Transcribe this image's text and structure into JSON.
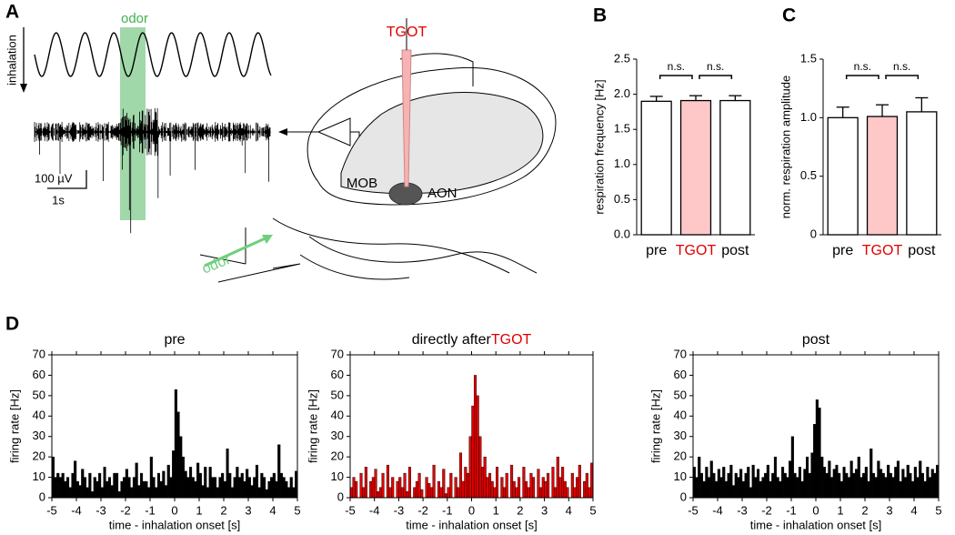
{
  "panel_labels": [
    "A",
    "B",
    "C",
    "D"
  ],
  "panel_a": {
    "odor_window_label": "odor",
    "respiration_label": "inhalation",
    "scale_voltage": "100 µV",
    "scale_time": "1s",
    "drug_label": "TGOT",
    "region_1": "MOB",
    "region_2": "AON",
    "odor_inlet_label": "odor"
  },
  "chart_data": [
    {
      "type": "bar",
      "ylabel": "respiration frequency [Hz]",
      "categories": [
        "pre",
        "TGOT",
        "post"
      ],
      "label_colors": [
        "#000000",
        "#e00000",
        "#000000"
      ],
      "colors": [
        "#ffffff",
        "#ffc8c8",
        "#ffffff"
      ],
      "values": [
        1.9,
        1.91,
        1.91
      ],
      "errors": [
        0.07,
        0.07,
        0.07
      ],
      "ylim": [
        0,
        2.5
      ],
      "yticks": [
        {
          "value": 0,
          "label": "0.0"
        },
        {
          "value": 0.5,
          "label": "0.5"
        },
        {
          "value": 1,
          "label": "1.0"
        },
        {
          "value": 1.5,
          "label": "1.5"
        },
        {
          "value": 2,
          "label": "2.0"
        },
        {
          "value": 2.5,
          "label": "2.5"
        }
      ],
      "annotations": [
        "n.s.",
        "n.s."
      ]
    },
    {
      "type": "bar",
      "ylabel": "norm. respiration amplitude",
      "categories": [
        "pre",
        "TGOT",
        "post"
      ],
      "label_colors": [
        "#000000",
        "#e00000",
        "#000000"
      ],
      "colors": [
        "#ffffff",
        "#ffc8c8",
        "#ffffff"
      ],
      "values": [
        1.0,
        1.01,
        1.05
      ],
      "errors": [
        0.09,
        0.1,
        0.12
      ],
      "ylim": [
        0,
        1.5
      ],
      "yticks": [
        0,
        0.5,
        {
          "value": 1,
          "label": "1.0"
        },
        1.5
      ],
      "annotations": [
        "n.s.",
        "n.s."
      ]
    },
    {
      "type": "histogram",
      "title": "pre",
      "xlabel": "time - inhalation onset [s]",
      "ylabel": "firing rate [Hz]",
      "color": "#000000",
      "edge_color": "#000000",
      "bins": [
        -5,
        -4.9,
        -4.8,
        -4.7,
        -4.6,
        -4.5,
        -4.4,
        -4.3,
        -4.2,
        -4.1,
        -4,
        -3.9,
        -3.8,
        -3.7,
        -3.6,
        -3.5,
        -3.4,
        -3.3,
        -3.2,
        -3.1,
        -3,
        -2.9,
        -2.8,
        -2.7,
        -2.6,
        -2.5,
        -2.4,
        -2.3,
        -2.2,
        -2.1,
        -2,
        -1.9,
        -1.8,
        -1.7,
        -1.6,
        -1.5,
        -1.4,
        -1.3,
        -1.2,
        -1.1,
        -1,
        -0.9,
        -0.8,
        -0.7,
        -0.6,
        -0.5,
        -0.4,
        -0.3,
        -0.2,
        -0.1,
        0,
        0.1,
        0.2,
        0.3,
        0.4,
        0.5,
        0.6,
        0.7,
        0.8,
        0.9,
        1,
        1.1,
        1.2,
        1.3,
        1.4,
        1.5,
        1.6,
        1.7,
        1.8,
        1.9,
        2,
        2.1,
        2.2,
        2.3,
        2.4,
        2.5,
        2.6,
        2.7,
        2.8,
        2.9,
        3,
        3.1,
        3.2,
        3.3,
        3.4,
        3.5,
        3.6,
        3.7,
        3.8,
        3.9,
        4,
        4.1,
        4.2,
        4.3,
        4.4,
        4.5,
        4.6,
        4.7,
        4.8,
        4.9,
        5
      ],
      "values": [
        20,
        10,
        12,
        10,
        12,
        8,
        10,
        5,
        12,
        18,
        8,
        6,
        14,
        10,
        5,
        12,
        3,
        10,
        8,
        12,
        5,
        15,
        8,
        10,
        6,
        12,
        12,
        3,
        8,
        10,
        14,
        10,
        5,
        10,
        17,
        6,
        12,
        8,
        8,
        5,
        20,
        10,
        5,
        12,
        8,
        13,
        6,
        16,
        10,
        23,
        53,
        42,
        30,
        20,
        13,
        10,
        15,
        10,
        8,
        17,
        12,
        6,
        15,
        5,
        15,
        10,
        10,
        5,
        10,
        12,
        8,
        24,
        12,
        5,
        10,
        15,
        10,
        12,
        8,
        14,
        10,
        6,
        10,
        16,
        5,
        12,
        10,
        4,
        8,
        10,
        12,
        8,
        26,
        12,
        10,
        8,
        5,
        10,
        5,
        13
      ],
      "xlim": [
        -5,
        5
      ],
      "xticks": [
        -5,
        -4,
        -3,
        -2,
        -1,
        0,
        1,
        2,
        3,
        4,
        5
      ],
      "ylim": [
        0,
        70
      ],
      "yticks": [
        0,
        10,
        20,
        30,
        40,
        50,
        60,
        70
      ]
    },
    {
      "type": "histogram",
      "title": "directly after",
      "title_suffix": "TGOT",
      "title_suffix_color": "#e00000",
      "xlabel": "time - inhalation onset [s]",
      "ylabel": "firing rate [Hz]",
      "color": "#e00000",
      "edge_color": "#000000",
      "bins": [
        -5,
        -4.9,
        -4.8,
        -4.7,
        -4.6,
        -4.5,
        -4.4,
        -4.3,
        -4.2,
        -4.1,
        -4,
        -3.9,
        -3.8,
        -3.7,
        -3.6,
        -3.5,
        -3.4,
        -3.3,
        -3.2,
        -3.1,
        -3,
        -2.9,
        -2.8,
        -2.7,
        -2.6,
        -2.5,
        -2.4,
        -2.3,
        -2.2,
        -2.1,
        -2,
        -1.9,
        -1.8,
        -1.7,
        -1.6,
        -1.5,
        -1.4,
        -1.3,
        -1.2,
        -1.1,
        -1,
        -0.9,
        -0.8,
        -0.7,
        -0.6,
        -0.5,
        -0.4,
        -0.3,
        -0.2,
        -0.1,
        0,
        0.1,
        0.2,
        0.3,
        0.4,
        0.5,
        0.6,
        0.7,
        0.8,
        0.9,
        1,
        1.1,
        1.2,
        1.3,
        1.4,
        1.5,
        1.6,
        1.7,
        1.8,
        1.9,
        2,
        2.1,
        2.2,
        2.3,
        2.4,
        2.5,
        2.6,
        2.7,
        2.8,
        2.9,
        3,
        3.1,
        3.2,
        3.3,
        3.4,
        3.5,
        3.6,
        3.7,
        3.8,
        3.9,
        4,
        4.1,
        4.2,
        4.3,
        4.4,
        4.5,
        4.6,
        4.7,
        4.8,
        4.9,
        5
      ],
      "values": [
        5,
        10,
        8,
        0,
        12,
        5,
        15,
        0,
        8,
        10,
        14,
        3,
        5,
        12,
        0,
        16,
        5,
        10,
        0,
        8,
        10,
        5,
        12,
        3,
        15,
        0,
        5,
        8,
        12,
        4,
        0,
        10,
        7,
        5,
        16,
        0,
        8,
        5,
        14,
        2,
        5,
        12,
        0,
        10,
        5,
        22,
        8,
        15,
        12,
        30,
        45,
        60,
        50,
        30,
        15,
        20,
        10,
        12,
        8,
        5,
        15,
        0,
        10,
        5,
        12,
        0,
        16,
        8,
        5,
        10,
        0,
        15,
        8,
        5,
        12,
        10,
        0,
        14,
        5,
        10,
        8,
        12,
        0,
        15,
        5,
        20,
        10,
        15,
        8,
        5,
        0,
        12,
        5,
        10,
        16,
        0,
        8,
        12,
        5,
        17
      ],
      "xlim": [
        -5,
        5
      ],
      "xticks": [
        -5,
        -4,
        -3,
        -2,
        -1,
        0,
        1,
        2,
        3,
        4,
        5
      ],
      "ylim": [
        0,
        70
      ],
      "yticks": [
        0,
        10,
        20,
        30,
        40,
        50,
        60,
        70
      ]
    },
    {
      "type": "histogram",
      "title": "post",
      "xlabel": "time - inhalation onset [s]",
      "ylabel": "firing rate [Hz]",
      "color": "#000000",
      "edge_color": "#000000",
      "bins": [
        -5,
        -4.9,
        -4.8,
        -4.7,
        -4.6,
        -4.5,
        -4.4,
        -4.3,
        -4.2,
        -4.1,
        -4,
        -3.9,
        -3.8,
        -3.7,
        -3.6,
        -3.5,
        -3.4,
        -3.3,
        -3.2,
        -3.1,
        -3,
        -2.9,
        -2.8,
        -2.7,
        -2.6,
        -2.5,
        -2.4,
        -2.3,
        -2.2,
        -2.1,
        -2,
        -1.9,
        -1.8,
        -1.7,
        -1.6,
        -1.5,
        -1.4,
        -1.3,
        -1.2,
        -1.1,
        -1,
        -0.9,
        -0.8,
        -0.7,
        -0.6,
        -0.5,
        -0.4,
        -0.3,
        -0.2,
        -0.1,
        0,
        0.1,
        0.2,
        0.3,
        0.4,
        0.5,
        0.6,
        0.7,
        0.8,
        0.9,
        1,
        1.1,
        1.2,
        1.3,
        1.4,
        1.5,
        1.6,
        1.7,
        1.8,
        1.9,
        2,
        2.1,
        2.2,
        2.3,
        2.4,
        2.5,
        2.6,
        2.7,
        2.8,
        2.9,
        3,
        3.1,
        3.2,
        3.3,
        3.4,
        3.5,
        3.6,
        3.7,
        3.8,
        3.9,
        4,
        4.1,
        4.2,
        4.3,
        4.4,
        4.5,
        4.6,
        4.7,
        4.8,
        4.9,
        5
      ],
      "values": [
        15,
        10,
        20,
        12,
        8,
        15,
        10,
        18,
        12,
        8,
        14,
        10,
        15,
        8,
        12,
        16,
        6,
        12,
        10,
        14,
        8,
        12,
        15,
        5,
        16,
        10,
        14,
        8,
        10,
        12,
        16,
        8,
        12,
        20,
        10,
        8,
        15,
        12,
        10,
        18,
        30,
        12,
        10,
        15,
        8,
        14,
        20,
        12,
        22,
        36,
        48,
        44,
        20,
        15,
        12,
        18,
        10,
        14,
        16,
        12,
        8,
        15,
        12,
        10,
        18,
        12,
        14,
        20,
        10,
        12,
        15,
        8,
        24,
        12,
        10,
        18,
        14,
        12,
        10,
        16,
        12,
        10,
        15,
        18,
        8,
        14,
        10,
        16,
        12,
        8,
        15,
        10,
        18,
        12,
        8,
        15,
        10,
        14,
        12,
        16
      ],
      "xlim": [
        -5,
        5
      ],
      "xticks": [
        -5,
        -4,
        -3,
        -2,
        -1,
        0,
        1,
        2,
        3,
        4,
        5
      ],
      "ylim": [
        0,
        70
      ],
      "yticks": [
        0,
        10,
        20,
        30,
        40,
        50,
        60,
        70
      ]
    }
  ]
}
